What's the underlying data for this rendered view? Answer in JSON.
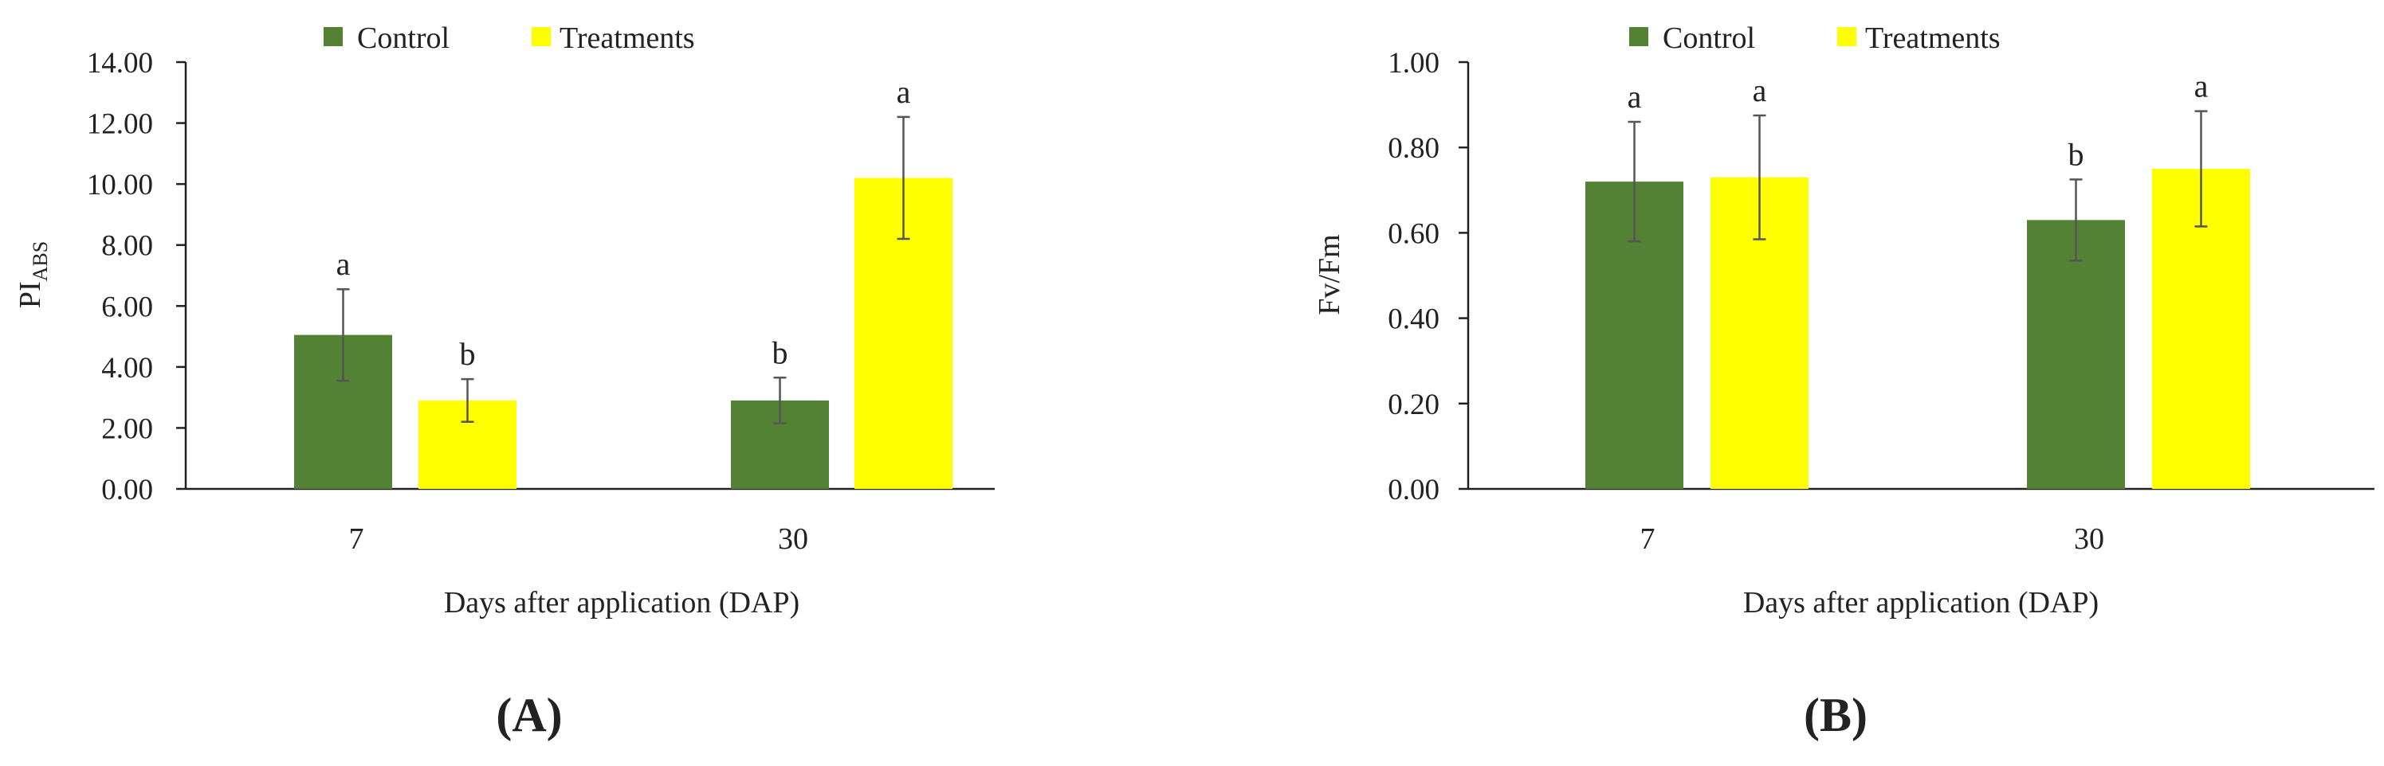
{
  "panels": [
    {
      "panel_label": "(A)",
      "legend": [
        {
          "label": "Control",
          "color": "#548235"
        },
        {
          "label": "Treatments",
          "color": "#FFFF00"
        }
      ]
    },
    {
      "panel_label": "(B)",
      "legend": [
        {
          "label": "Control",
          "color": "#548235"
        },
        {
          "label": "Treatments",
          "color": "#FFFF00"
        }
      ]
    }
  ],
  "chart_data": [
    {
      "type": "bar",
      "categories": [
        "7",
        "30"
      ],
      "series": [
        {
          "name": "Control",
          "color": "#548235",
          "values": [
            5.05,
            2.9
          ],
          "errors": [
            1.5,
            0.75
          ],
          "letters": [
            "a",
            "b"
          ]
        },
        {
          "name": "Treatments",
          "color": "#FFFF00",
          "values": [
            2.9,
            10.2
          ],
          "errors": [
            0.7,
            2.0
          ],
          "letters": [
            "b",
            "a"
          ]
        }
      ],
      "xlabel": "Days after application (DAP)",
      "ylabel": "PI",
      "ylabel_subscript": "ABS",
      "ylim": [
        0,
        14
      ],
      "yticks": [
        0,
        2,
        4,
        6,
        8,
        10,
        12,
        14
      ],
      "ytick_labels": [
        "0.00",
        "2.00",
        "4.00",
        "6.00",
        "8.00",
        "10.00",
        "12.00",
        "14.00"
      ],
      "grid": false,
      "legend_position": "top"
    },
    {
      "type": "bar",
      "categories": [
        "7",
        "30"
      ],
      "series": [
        {
          "name": "Control",
          "color": "#548235",
          "values": [
            0.72,
            0.63
          ],
          "errors": [
            0.14,
            0.095
          ],
          "letters": [
            "a",
            "b"
          ]
        },
        {
          "name": "Treatments",
          "color": "#FFFF00",
          "values": [
            0.73,
            0.75
          ],
          "errors": [
            0.145,
            0.135
          ],
          "letters": [
            "a",
            "a"
          ]
        }
      ],
      "xlabel": "Days after application (DAP)",
      "ylabel": "Fv/Fm",
      "ylim": [
        0,
        1
      ],
      "yticks": [
        0,
        0.2,
        0.4,
        0.6,
        0.8,
        1.0
      ],
      "ytick_labels": [
        "0.00",
        "0.20",
        "0.40",
        "0.60",
        "0.80",
        "1.00"
      ],
      "grid": false,
      "legend_position": "top"
    }
  ]
}
